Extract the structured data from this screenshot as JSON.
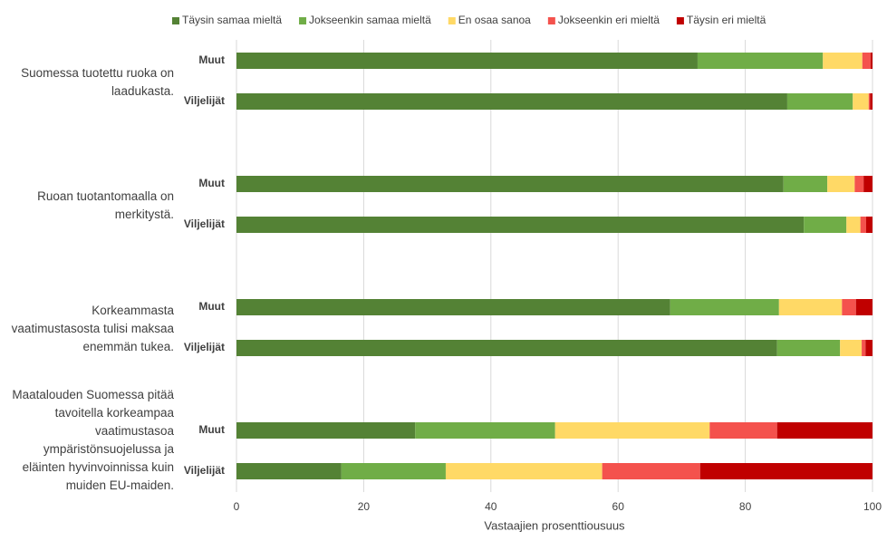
{
  "chart_data": {
    "type": "stacked-barh",
    "groups": [
      "Suomessa tuotettu ruoka on laadukasta.",
      "Ruoan tuotantomaalla on merkitystä.",
      "Korkeammasta vaatimustasosta tulisi maksaa enemmän tukea.",
      "Maatalouden Suomessa pitää tavoitella korkeampaa vaatimustasoa ympäristönsuojelussa ja eläinten hyvinvoinnissa kuin muiden EU-maiden."
    ],
    "categories": [
      "Muut",
      "Viljelijät",
      "Muut",
      "Viljelijät",
      "Muut",
      "Viljelijät",
      "Muut",
      "Viljelijät"
    ],
    "series": [
      {
        "name": "Täysin samaa mieltä",
        "color": "#548235",
        "values": [
          72.5,
          86.6,
          86.0,
          89.2,
          68.2,
          85.0,
          28.1,
          16.5
        ]
      },
      {
        "name": "Jokseenkin samaa mieltä",
        "color": "#70ad47",
        "values": [
          19.7,
          10.3,
          6.9,
          6.7,
          17.1,
          9.9,
          22.0,
          16.4
        ]
      },
      {
        "name": "En osaa sanoa",
        "color": "#ffd966",
        "values": [
          6.2,
          2.5,
          4.3,
          2.2,
          9.9,
          3.4,
          24.3,
          24.6
        ]
      },
      {
        "name": "Jokseenkin eri mieltä",
        "color": "#f4524d",
        "values": [
          1.3,
          0.2,
          1.4,
          0.9,
          2.2,
          0.6,
          10.6,
          15.4
        ]
      },
      {
        "name": "Täysin eri mieltä",
        "color": "#c00000",
        "values": [
          0.3,
          0.4,
          1.4,
          1.0,
          2.6,
          1.1,
          15.0,
          27.1
        ]
      }
    ],
    "xlabel": "Vastaajien prosenttiousuus",
    "xlim": [
      0,
      100
    ],
    "xticks": [
      0,
      20,
      40,
      60,
      80,
      100
    ],
    "grid": true,
    "legend": "top"
  }
}
